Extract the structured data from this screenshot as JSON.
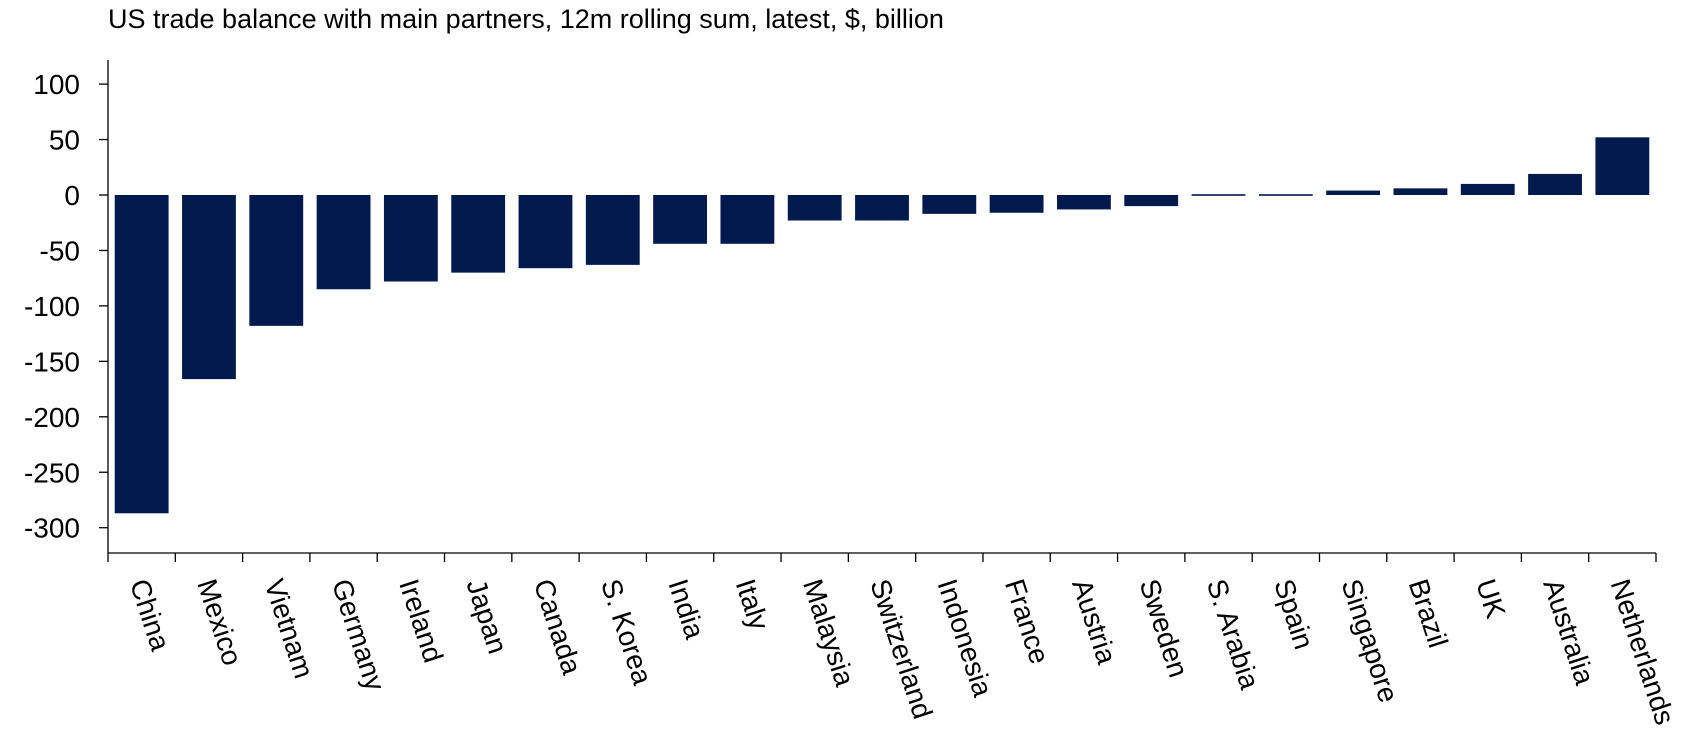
{
  "chart_data": {
    "type": "bar",
    "title": "US trade balance with main partners, 12m rolling sum, latest, $, billion",
    "xlabel": "",
    "ylabel": "",
    "categories": [
      "China",
      "Mexico",
      "Vietnam",
      "Germany",
      "Ireland",
      "Japan",
      "Canada",
      "S. Korea",
      "India",
      "Italy",
      "Malaysia",
      "Switzerland",
      "Indonesia",
      "France",
      "Austria",
      "Sweden",
      "S. Arabia",
      "Spain",
      "Singapore",
      "Brazil",
      "UK",
      "Australia",
      "Netherlands"
    ],
    "values": [
      -287,
      -166,
      -118,
      -85,
      -78,
      -70,
      -66,
      -63,
      -44,
      -44,
      -23,
      -23,
      -17,
      -16,
      -13,
      -10,
      -1,
      1,
      4,
      6,
      10,
      19,
      52
    ],
    "ylim": [
      -300,
      100
    ],
    "yticks": [
      100,
      50,
      0,
      -50,
      -100,
      -150,
      -200,
      -250,
      -300
    ],
    "ytick_labels": [
      "100",
      "50",
      "0",
      "-50",
      "-100",
      "-150",
      "-200",
      "-250",
      "-300"
    ],
    "grid": false,
    "legend": "none",
    "bar_color": "#001A4D",
    "axis_color": "#000000"
  }
}
